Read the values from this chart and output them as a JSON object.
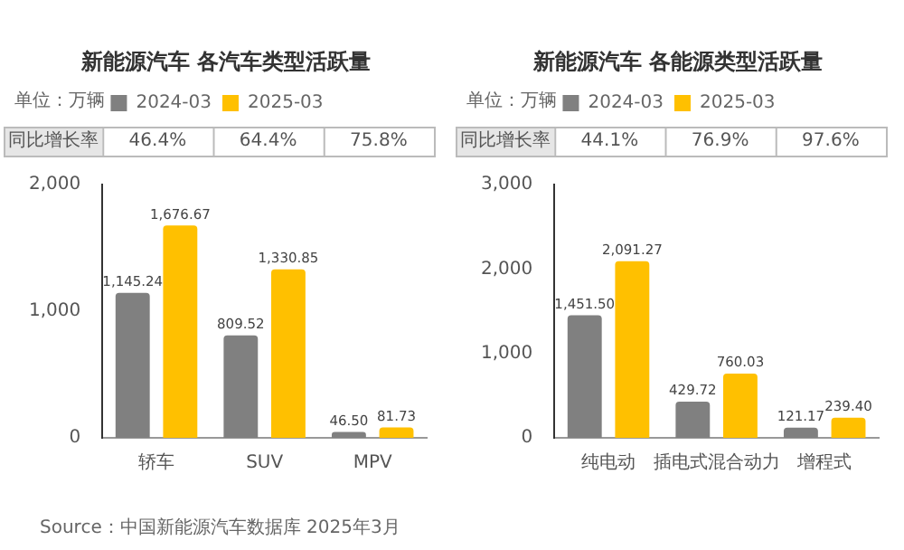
{
  "chart_data": [
    {
      "type": "bar",
      "title": "新能源汽车 各汽车类型活跃量",
      "categories": [
        "轿车",
        "SUV",
        "MPV"
      ],
      "series": [
        {
          "name": "2024-03",
          "color": "#808080",
          "values": [
            1145.24,
            809.52,
            46.5
          ],
          "value_labels": [
            "1,145.24",
            "809.52",
            "46.50"
          ]
        },
        {
          "name": "2025-03",
          "color": "#ffc000",
          "values": [
            1676.67,
            1330.85,
            81.73
          ],
          "value_labels": [
            "1,676.67",
            "1,330.85",
            "81.73"
          ]
        }
      ],
      "ylim": [
        0,
        2000
      ],
      "yticks": [
        0,
        {
          "value": 1000,
          "label": "1,000"
        },
        {
          "value": 2000,
          "label": "2,000"
        }
      ],
      "legend": "top",
      "grid": false,
      "annotations": [
        "单位：万辆",
        "同比增长率",
        "46.4%",
        "64.4%",
        "75.8%",
        "Source：中国新能源汽车数据库 2025年3月"
      ]
    },
    {
      "type": "bar",
      "title": "新能源汽车 各能源类型活跃量",
      "categories": [
        "纯电动",
        "插电式混合动力",
        "增程式"
      ],
      "series": [
        {
          "name": "2024-03",
          "color": "#808080",
          "values": [
            1451.5,
            429.72,
            121.17
          ],
          "value_labels": [
            "1,451.50",
            "429.72",
            "121.17"
          ]
        },
        {
          "name": "2025-03",
          "color": "#ffc000",
          "values": [
            2091.27,
            760.03,
            239.4
          ],
          "value_labels": [
            "2,091.27",
            "760.03",
            "239.40"
          ]
        }
      ],
      "ylim": [
        0,
        3000
      ],
      "yticks": [
        0,
        {
          "value": 1000,
          "label": "1,000"
        },
        {
          "value": 2000,
          "label": "2,000"
        },
        {
          "value": 3000,
          "label": "3,000"
        }
      ],
      "legend": "top",
      "grid": false,
      "annotations": [
        "单位：万辆",
        "同比增长率",
        "44.1%",
        "76.9%",
        "97.6%"
      ]
    }
  ]
}
